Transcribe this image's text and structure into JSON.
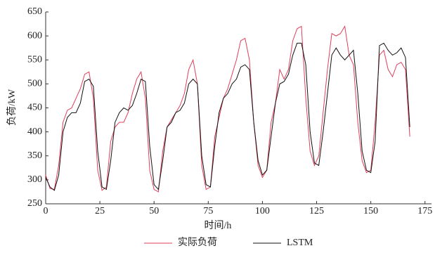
{
  "chart_data": {
    "type": "line",
    "xlabel": "时间/h",
    "ylabel": "负荷/kW",
    "x": [
      0,
      2,
      4,
      6,
      8,
      10,
      12,
      14,
      16,
      18,
      20,
      22,
      24,
      26,
      28,
      30,
      32,
      34,
      36,
      38,
      40,
      42,
      44,
      46,
      48,
      50,
      52,
      54,
      56,
      58,
      60,
      62,
      64,
      66,
      68,
      70,
      72,
      74,
      76,
      78,
      80,
      82,
      84,
      86,
      88,
      90,
      92,
      94,
      96,
      98,
      100,
      102,
      104,
      106,
      108,
      110,
      112,
      114,
      116,
      118,
      120,
      122,
      124,
      126,
      128,
      130,
      132,
      134,
      136,
      138,
      140,
      142,
      144,
      146,
      148,
      150,
      152,
      154,
      156,
      158,
      160,
      162,
      164,
      166,
      168
    ],
    "series": [
      {
        "name": "实际负荷",
        "color": "#e0405a",
        "values": [
          310,
          282,
          280,
          330,
          420,
          445,
          450,
          470,
          490,
          520,
          525,
          470,
          320,
          278,
          285,
          380,
          410,
          420,
          420,
          440,
          480,
          510,
          525,
          470,
          320,
          280,
          275,
          360,
          410,
          425,
          440,
          455,
          480,
          530,
          550,
          500,
          330,
          280,
          285,
          390,
          430,
          470,
          490,
          520,
          550,
          590,
          595,
          550,
          420,
          330,
          305,
          320,
          420,
          460,
          530,
          510,
          530,
          590,
          615,
          620,
          470,
          360,
          330,
          350,
          440,
          530,
          605,
          600,
          605,
          620,
          560,
          540,
          420,
          340,
          315,
          320,
          420,
          560,
          570,
          530,
          515,
          540,
          545,
          530,
          390
        ]
      },
      {
        "name": "LSTM",
        "color": "#111111",
        "values": [
          305,
          285,
          278,
          310,
          400,
          430,
          440,
          440,
          460,
          505,
          510,
          495,
          360,
          285,
          280,
          340,
          420,
          440,
          450,
          445,
          455,
          480,
          510,
          505,
          370,
          290,
          280,
          340,
          410,
          420,
          440,
          445,
          460,
          500,
          510,
          500,
          350,
          290,
          285,
          370,
          440,
          470,
          480,
          500,
          510,
          535,
          540,
          530,
          420,
          340,
          310,
          320,
          390,
          460,
          500,
          505,
          520,
          560,
          585,
          585,
          540,
          400,
          335,
          330,
          400,
          480,
          560,
          575,
          560,
          550,
          560,
          570,
          480,
          360,
          320,
          315,
          380,
          580,
          585,
          570,
          560,
          565,
          575,
          555,
          410
        ]
      }
    ],
    "xlim": [
      0,
      178
    ],
    "ylim": [
      250,
      650
    ],
    "xticks": [
      0,
      25,
      50,
      75,
      100,
      125,
      150,
      175
    ],
    "yticks": [
      250,
      300,
      350,
      400,
      450,
      500,
      550,
      600,
      650
    ],
    "legend": "bottom"
  }
}
